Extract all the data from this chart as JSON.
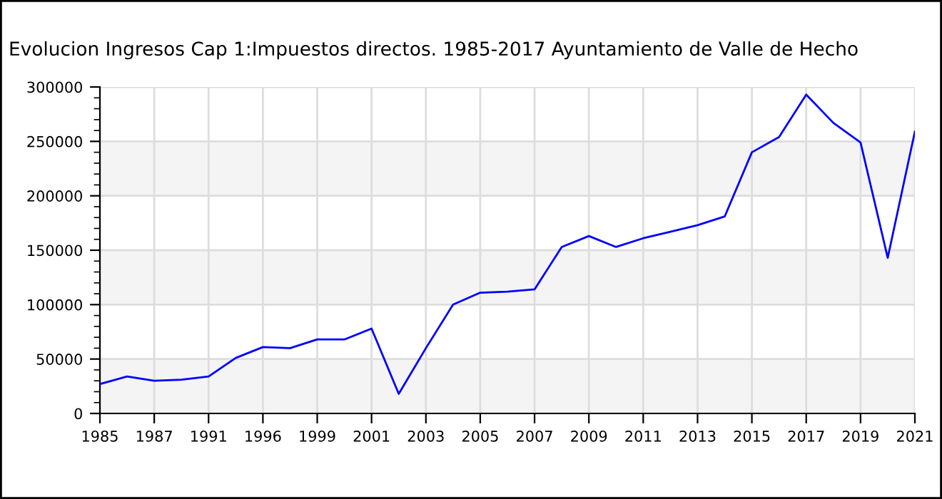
{
  "chart_data": {
    "type": "line",
    "title": "Evolucion Ingresos Cap 1:Impuestos directos. 1985-2017 Ayuntamiento de Valle de Hecho",
    "categories": [
      "1985",
      null,
      "1987",
      null,
      "1991",
      null,
      "1996",
      null,
      "1999",
      null,
      "2001",
      null,
      "2003",
      null,
      "2005",
      null,
      "2007",
      null,
      "2009",
      null,
      "2011",
      null,
      "2013",
      null,
      "2015",
      null,
      "2017",
      null,
      "2019",
      null,
      "2021"
    ],
    "series": [
      {
        "color": "#0000ff",
        "values": [
          27000,
          34000,
          30000,
          31000,
          34000,
          51000,
          61000,
          60000,
          68000,
          68000,
          78000,
          18000,
          60000,
          100000,
          111000,
          112000,
          114000,
          153000,
          163000,
          153000,
          161000,
          167000,
          173000,
          181000,
          240000,
          254000,
          293000,
          267000,
          249000,
          143000,
          259000
        ]
      }
    ],
    "ylim": [
      0,
      300000
    ],
    "yticks": [
      0,
      50000,
      100000,
      150000,
      200000,
      250000,
      300000
    ],
    "bands": [
      {
        "axis": "y",
        "from": 0,
        "to": 50000,
        "color": "#f4f4f4"
      },
      {
        "axis": "y",
        "from": 100000,
        "to": 150000,
        "color": "#f4f4f4"
      },
      {
        "axis": "y",
        "from": 200000,
        "to": 250000,
        "color": "#f4f4f4"
      }
    ],
    "grid": true,
    "legend": false
  }
}
